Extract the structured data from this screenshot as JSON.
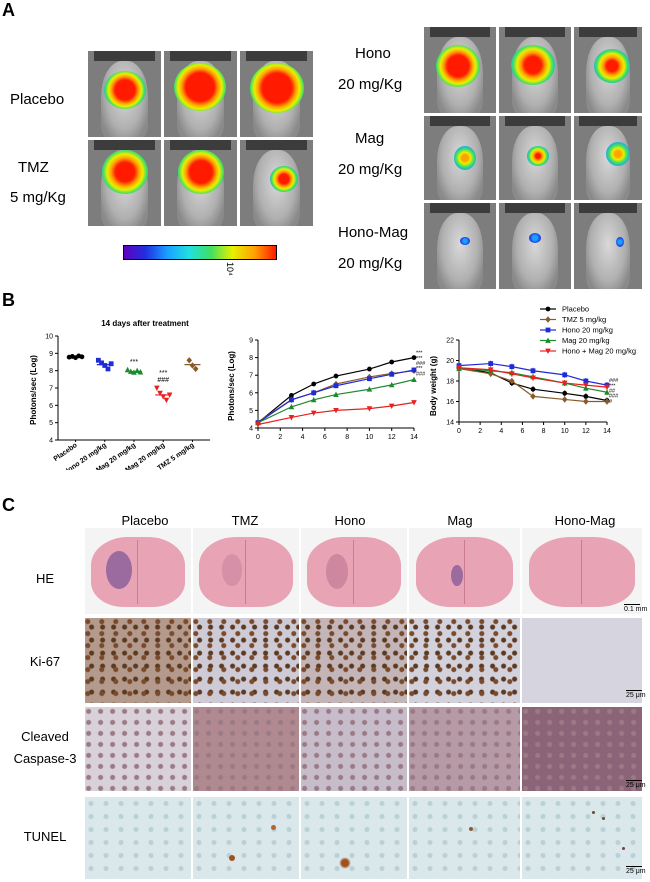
{
  "panel_a": {
    "letter": "A",
    "groups": {
      "placebo": "Placebo",
      "tmz_l1": "TMZ",
      "tmz_l2": "5 mg/Kg",
      "hono_l1": "Hono",
      "hono_l2": "20 mg/Kg",
      "mag_l1": "Mag",
      "mag_l2": "20 mg/Kg",
      "honomag_l1": "Hono-Mag",
      "honomag_l2": "20 mg/Kg"
    },
    "colorbar_label": "10⁴"
  },
  "panel_b": {
    "letter": "B",
    "colors": {
      "placebo": "#000000",
      "tmz": "#8b5a2b",
      "hono": "#1f2bd6",
      "mag": "#1e8a2e",
      "honomag": "#e8201e"
    },
    "legend": [
      "Placebo",
      "TMZ 5 mg/kg",
      "Hono 20 mg/kg",
      "Mag 20 mg/kg",
      "Hono + Mag 20 mg/kg"
    ]
  },
  "chart_data": [
    {
      "type": "scatter",
      "title": "14 days after treatment",
      "xlabel": "",
      "ylabel": "Photons/sec (Log)",
      "ylim": [
        4,
        10
      ],
      "yticks": [
        4,
        5,
        6,
        7,
        8,
        9,
        10
      ],
      "categories": [
        "Placebo",
        "Hono 20 mg/kg",
        "Mag 20 mg/kg",
        "Hono + Mag 20 mg/kg",
        "TMZ 5 mg/kg"
      ],
      "series": [
        {
          "name": "Placebo",
          "mean": 8.8,
          "points": [
            8.78,
            8.82,
            8.75,
            8.85,
            8.8
          ]
        },
        {
          "name": "Hono 20 mg/kg",
          "mean": 8.35,
          "points": [
            8.6,
            8.45,
            8.3,
            8.1,
            8.4
          ]
        },
        {
          "name": "Mag 20 mg/kg",
          "mean": 7.95,
          "points": [
            8.05,
            7.95,
            7.9,
            8.0,
            7.92
          ]
        },
        {
          "name": "Hono + Mag 20 mg/kg",
          "mean": 6.6,
          "points": [
            7.0,
            6.7,
            6.5,
            6.3,
            6.6
          ]
        },
        {
          "name": "TMZ 5 mg/kg",
          "mean": 8.35,
          "points": [
            8.6,
            8.3,
            8.1
          ]
        }
      ],
      "annotations": [
        {
          "category": "Mag 20 mg/kg",
          "text": "***"
        },
        {
          "category": "Hono + Mag 20 mg/kg",
          "text": "###"
        },
        {
          "category": "Hono + Mag 20 mg/kg",
          "text": "***"
        }
      ]
    },
    {
      "type": "line",
      "title": "",
      "xlabel": "",
      "ylabel": "Photons/sec (Log)",
      "xlim": [
        0,
        14
      ],
      "ylim": [
        4,
        9
      ],
      "xticks": [
        0,
        2,
        4,
        6,
        8,
        10,
        12,
        14
      ],
      "yticks": [
        4,
        5,
        6,
        7,
        8,
        9
      ],
      "x": [
        0,
        3,
        5,
        7,
        10,
        12,
        14
      ],
      "series": [
        {
          "name": "Placebo",
          "values": [
            4.3,
            5.85,
            6.5,
            6.95,
            7.35,
            7.75,
            8.0
          ]
        },
        {
          "name": "TMZ 5 mg/kg",
          "values": [
            4.35,
            5.6,
            6.0,
            6.5,
            6.9,
            7.1,
            7.25
          ]
        },
        {
          "name": "Hono 20 mg/kg",
          "values": [
            4.3,
            5.6,
            6.0,
            6.4,
            6.8,
            7.05,
            7.3
          ]
        },
        {
          "name": "Mag 20 mg/kg",
          "values": [
            4.3,
            5.2,
            5.6,
            5.9,
            6.2,
            6.45,
            6.75
          ]
        },
        {
          "name": "Hono + Mag 20 mg/kg",
          "values": [
            4.2,
            4.6,
            4.85,
            5.0,
            5.1,
            5.25,
            5.45
          ]
        }
      ],
      "annotations": [
        "***",
        "***",
        "###",
        "***",
        "###"
      ]
    },
    {
      "type": "line",
      "title": "",
      "xlabel": "",
      "ylabel": "Body weight (g)",
      "xlim": [
        0,
        14
      ],
      "ylim": [
        14,
        22
      ],
      "xticks": [
        0,
        2,
        4,
        6,
        8,
        10,
        12,
        14
      ],
      "yticks": [
        14,
        16,
        18,
        20,
        22
      ],
      "x": [
        0,
        3,
        5,
        7,
        10,
        12,
        14
      ],
      "series": [
        {
          "name": "Placebo",
          "values": [
            19.3,
            18.8,
            17.8,
            17.2,
            16.8,
            16.5,
            16.1
          ]
        },
        {
          "name": "TMZ 5 mg/kg",
          "values": [
            19.2,
            18.7,
            18.0,
            16.5,
            16.2,
            16.0,
            16.0
          ]
        },
        {
          "name": "Hono 20 mg/kg",
          "values": [
            19.5,
            19.7,
            19.4,
            19.0,
            18.6,
            18.0,
            17.6
          ]
        },
        {
          "name": "Mag 20 mg/kg",
          "values": [
            19.2,
            19.0,
            18.8,
            18.4,
            17.8,
            17.3,
            16.9
          ]
        },
        {
          "name": "Hono + Mag 20 mg/kg",
          "values": [
            19.3,
            19.1,
            18.7,
            18.3,
            17.8,
            17.6,
            17.4
          ]
        }
      ],
      "annotations": [
        "###",
        "***",
        "##",
        "###",
        "#"
      ]
    }
  ],
  "panel_c": {
    "letter": "C",
    "columns": [
      "Placebo",
      "TMZ",
      "Hono",
      "Mag",
      "Hono-Mag"
    ],
    "rows": {
      "he": "HE",
      "ki67": "Ki-67",
      "caspase_l1": "Cleaved",
      "caspase_l2": "Caspase-3",
      "tunel": "TUNEL"
    },
    "scale_bars": {
      "he": "0.1 mm",
      "ki67": "25 μm",
      "caspase": "25 μm",
      "tunel": "25 μm"
    }
  }
}
